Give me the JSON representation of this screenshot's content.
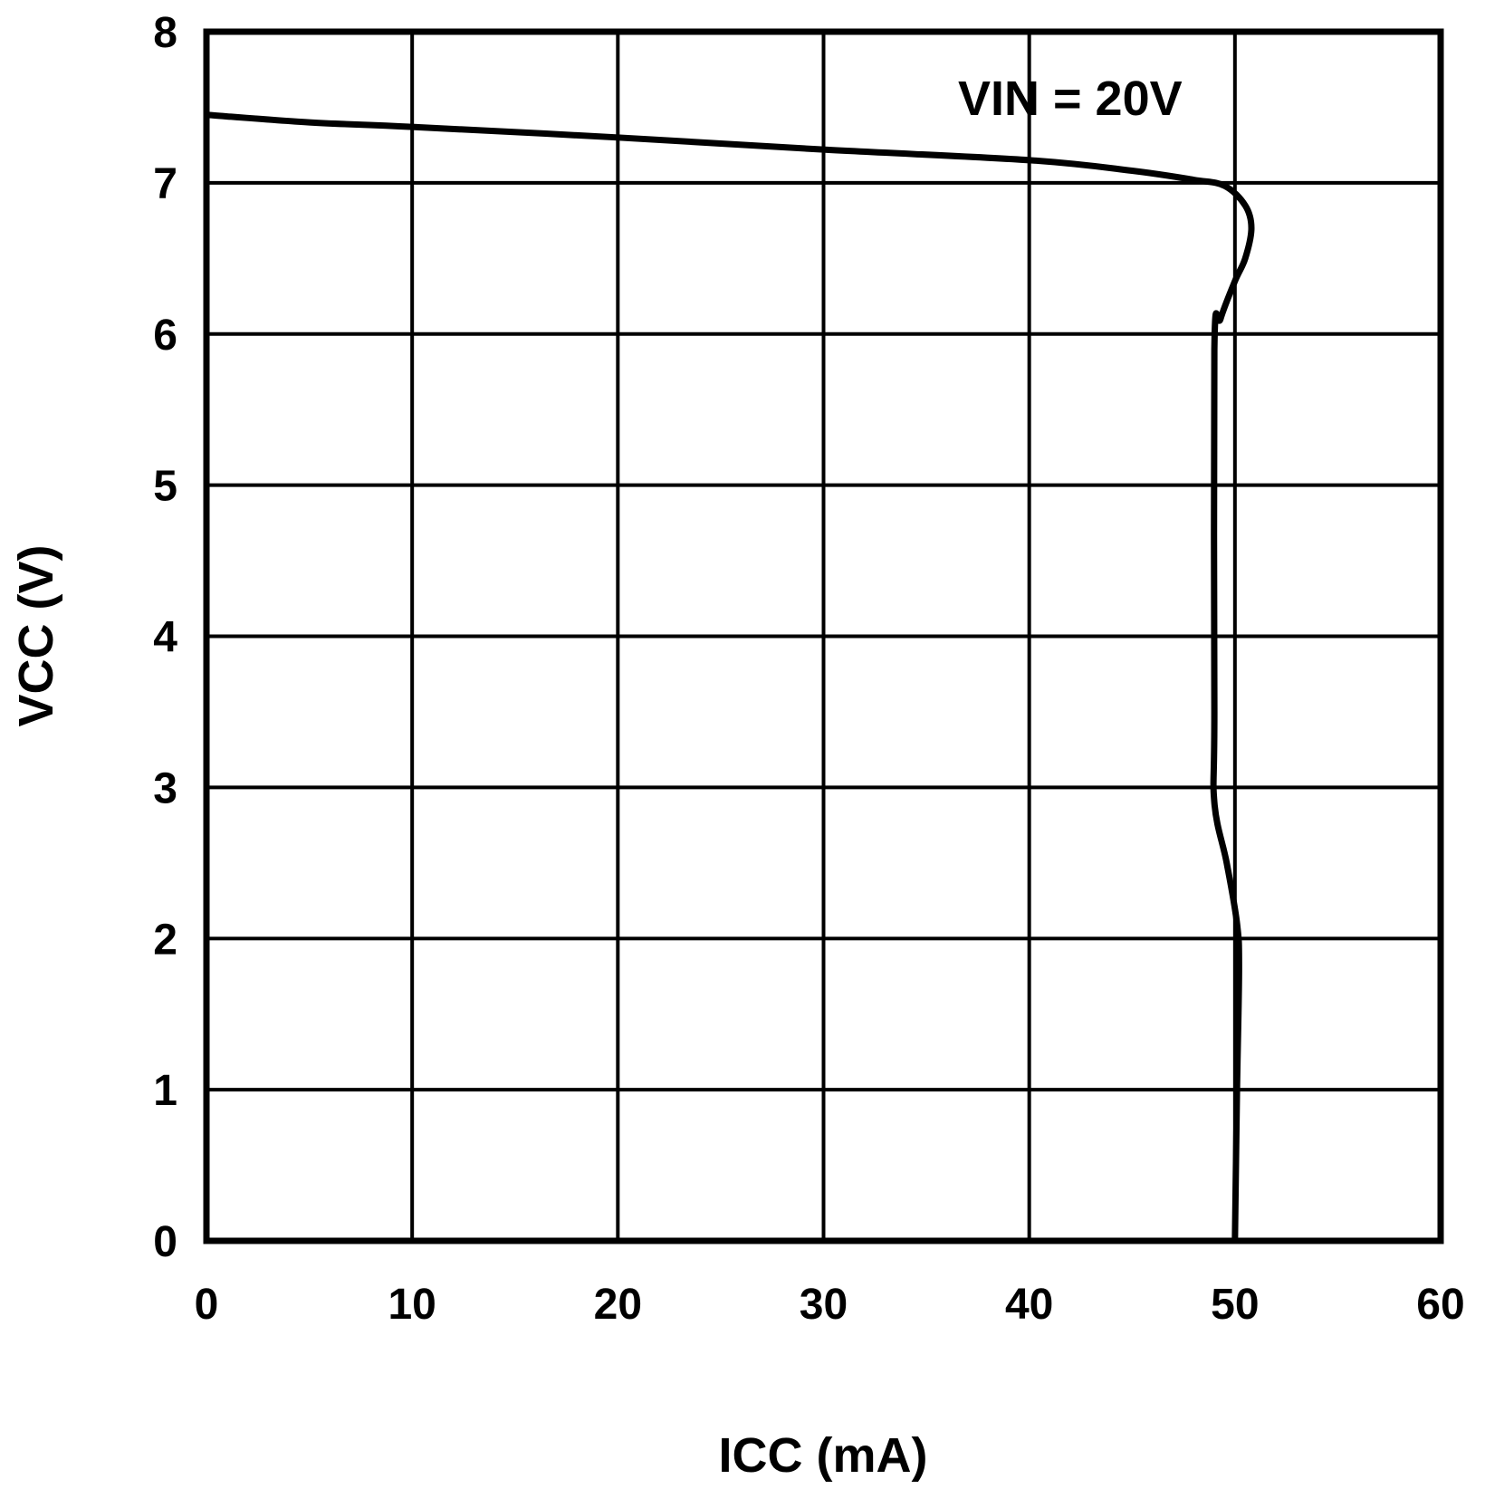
{
  "chart_data": {
    "type": "line",
    "title": "",
    "xlabel": "ICC (mA)",
    "ylabel": "VCC (V)",
    "xlim": [
      0,
      60
    ],
    "ylim": [
      0,
      8
    ],
    "xticks": [
      "0",
      "10",
      "20",
      "30",
      "40",
      "50",
      "60"
    ],
    "yticks": [
      "0",
      "1",
      "2",
      "3",
      "4",
      "5",
      "6",
      "7",
      "8"
    ],
    "grid": true,
    "annotations": [
      {
        "text": "VIN = 20V",
        "x": 43,
        "y": 7.6
      }
    ],
    "series": [
      {
        "name": "VIN = 20V",
        "x": [
          0,
          5,
          10,
          20,
          30,
          40,
          45,
          48,
          49.5,
          50.5,
          50.8,
          50.5,
          50,
          49.3,
          49,
          49,
          49,
          49.6,
          50.1,
          50.2,
          50.1,
          50
        ],
        "y": [
          7.45,
          7.4,
          7.37,
          7.3,
          7.22,
          7.15,
          7.08,
          7.02,
          6.98,
          6.85,
          6.7,
          6.5,
          6.35,
          6.1,
          5.9,
          3.5,
          2.9,
          2.5,
          2.1,
          1.8,
          1.0,
          0
        ]
      }
    ]
  }
}
